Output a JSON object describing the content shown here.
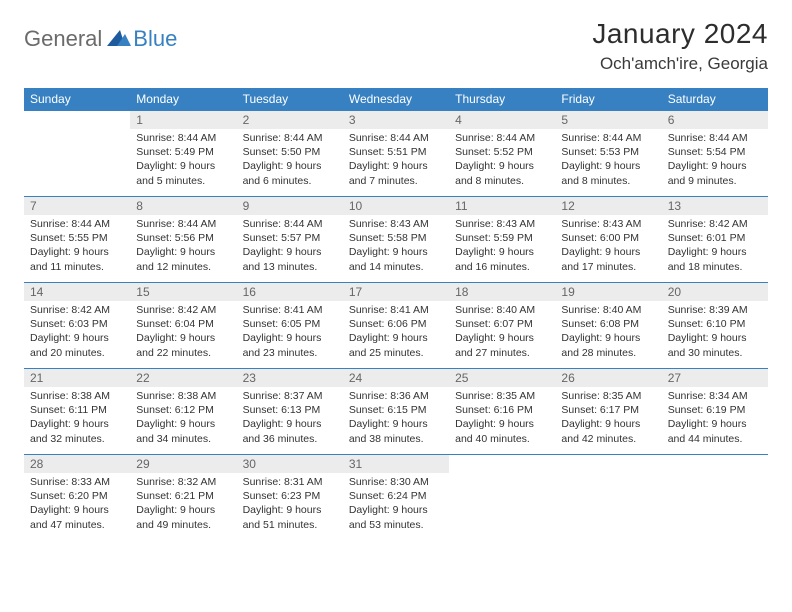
{
  "logo": {
    "text1": "General",
    "text2": "Blue"
  },
  "title": "January 2024",
  "location": "Och'amch'ire, Georgia",
  "colors": {
    "header_bg": "#3781c2",
    "header_text": "#ffffff",
    "daynum_bg": "#ececec",
    "daynum_text": "#666666",
    "cell_border": "#3781c2",
    "body_text": "#333333",
    "logo_blue": "#3781c2",
    "logo_gray": "#6b6b6b"
  },
  "weekdays": [
    "Sunday",
    "Monday",
    "Tuesday",
    "Wednesday",
    "Thursday",
    "Friday",
    "Saturday"
  ],
  "first_day_index": 1,
  "days": [
    {
      "n": 1,
      "sunrise": "8:44 AM",
      "sunset": "5:49 PM",
      "daylight": "9 hours and 5 minutes."
    },
    {
      "n": 2,
      "sunrise": "8:44 AM",
      "sunset": "5:50 PM",
      "daylight": "9 hours and 6 minutes."
    },
    {
      "n": 3,
      "sunrise": "8:44 AM",
      "sunset": "5:51 PM",
      "daylight": "9 hours and 7 minutes."
    },
    {
      "n": 4,
      "sunrise": "8:44 AM",
      "sunset": "5:52 PM",
      "daylight": "9 hours and 8 minutes."
    },
    {
      "n": 5,
      "sunrise": "8:44 AM",
      "sunset": "5:53 PM",
      "daylight": "9 hours and 8 minutes."
    },
    {
      "n": 6,
      "sunrise": "8:44 AM",
      "sunset": "5:54 PM",
      "daylight": "9 hours and 9 minutes."
    },
    {
      "n": 7,
      "sunrise": "8:44 AM",
      "sunset": "5:55 PM",
      "daylight": "9 hours and 11 minutes."
    },
    {
      "n": 8,
      "sunrise": "8:44 AM",
      "sunset": "5:56 PM",
      "daylight": "9 hours and 12 minutes."
    },
    {
      "n": 9,
      "sunrise": "8:44 AM",
      "sunset": "5:57 PM",
      "daylight": "9 hours and 13 minutes."
    },
    {
      "n": 10,
      "sunrise": "8:43 AM",
      "sunset": "5:58 PM",
      "daylight": "9 hours and 14 minutes."
    },
    {
      "n": 11,
      "sunrise": "8:43 AM",
      "sunset": "5:59 PM",
      "daylight": "9 hours and 16 minutes."
    },
    {
      "n": 12,
      "sunrise": "8:43 AM",
      "sunset": "6:00 PM",
      "daylight": "9 hours and 17 minutes."
    },
    {
      "n": 13,
      "sunrise": "8:42 AM",
      "sunset": "6:01 PM",
      "daylight": "9 hours and 18 minutes."
    },
    {
      "n": 14,
      "sunrise": "8:42 AM",
      "sunset": "6:03 PM",
      "daylight": "9 hours and 20 minutes."
    },
    {
      "n": 15,
      "sunrise": "8:42 AM",
      "sunset": "6:04 PM",
      "daylight": "9 hours and 22 minutes."
    },
    {
      "n": 16,
      "sunrise": "8:41 AM",
      "sunset": "6:05 PM",
      "daylight": "9 hours and 23 minutes."
    },
    {
      "n": 17,
      "sunrise": "8:41 AM",
      "sunset": "6:06 PM",
      "daylight": "9 hours and 25 minutes."
    },
    {
      "n": 18,
      "sunrise": "8:40 AM",
      "sunset": "6:07 PM",
      "daylight": "9 hours and 27 minutes."
    },
    {
      "n": 19,
      "sunrise": "8:40 AM",
      "sunset": "6:08 PM",
      "daylight": "9 hours and 28 minutes."
    },
    {
      "n": 20,
      "sunrise": "8:39 AM",
      "sunset": "6:10 PM",
      "daylight": "9 hours and 30 minutes."
    },
    {
      "n": 21,
      "sunrise": "8:38 AM",
      "sunset": "6:11 PM",
      "daylight": "9 hours and 32 minutes."
    },
    {
      "n": 22,
      "sunrise": "8:38 AM",
      "sunset": "6:12 PM",
      "daylight": "9 hours and 34 minutes."
    },
    {
      "n": 23,
      "sunrise": "8:37 AM",
      "sunset": "6:13 PM",
      "daylight": "9 hours and 36 minutes."
    },
    {
      "n": 24,
      "sunrise": "8:36 AM",
      "sunset": "6:15 PM",
      "daylight": "9 hours and 38 minutes."
    },
    {
      "n": 25,
      "sunrise": "8:35 AM",
      "sunset": "6:16 PM",
      "daylight": "9 hours and 40 minutes."
    },
    {
      "n": 26,
      "sunrise": "8:35 AM",
      "sunset": "6:17 PM",
      "daylight": "9 hours and 42 minutes."
    },
    {
      "n": 27,
      "sunrise": "8:34 AM",
      "sunset": "6:19 PM",
      "daylight": "9 hours and 44 minutes."
    },
    {
      "n": 28,
      "sunrise": "8:33 AM",
      "sunset": "6:20 PM",
      "daylight": "9 hours and 47 minutes."
    },
    {
      "n": 29,
      "sunrise": "8:32 AM",
      "sunset": "6:21 PM",
      "daylight": "9 hours and 49 minutes."
    },
    {
      "n": 30,
      "sunrise": "8:31 AM",
      "sunset": "6:23 PM",
      "daylight": "9 hours and 51 minutes."
    },
    {
      "n": 31,
      "sunrise": "8:30 AM",
      "sunset": "6:24 PM",
      "daylight": "9 hours and 53 minutes."
    }
  ],
  "labels": {
    "sunrise": "Sunrise:",
    "sunset": "Sunset:",
    "daylight": "Daylight:"
  }
}
